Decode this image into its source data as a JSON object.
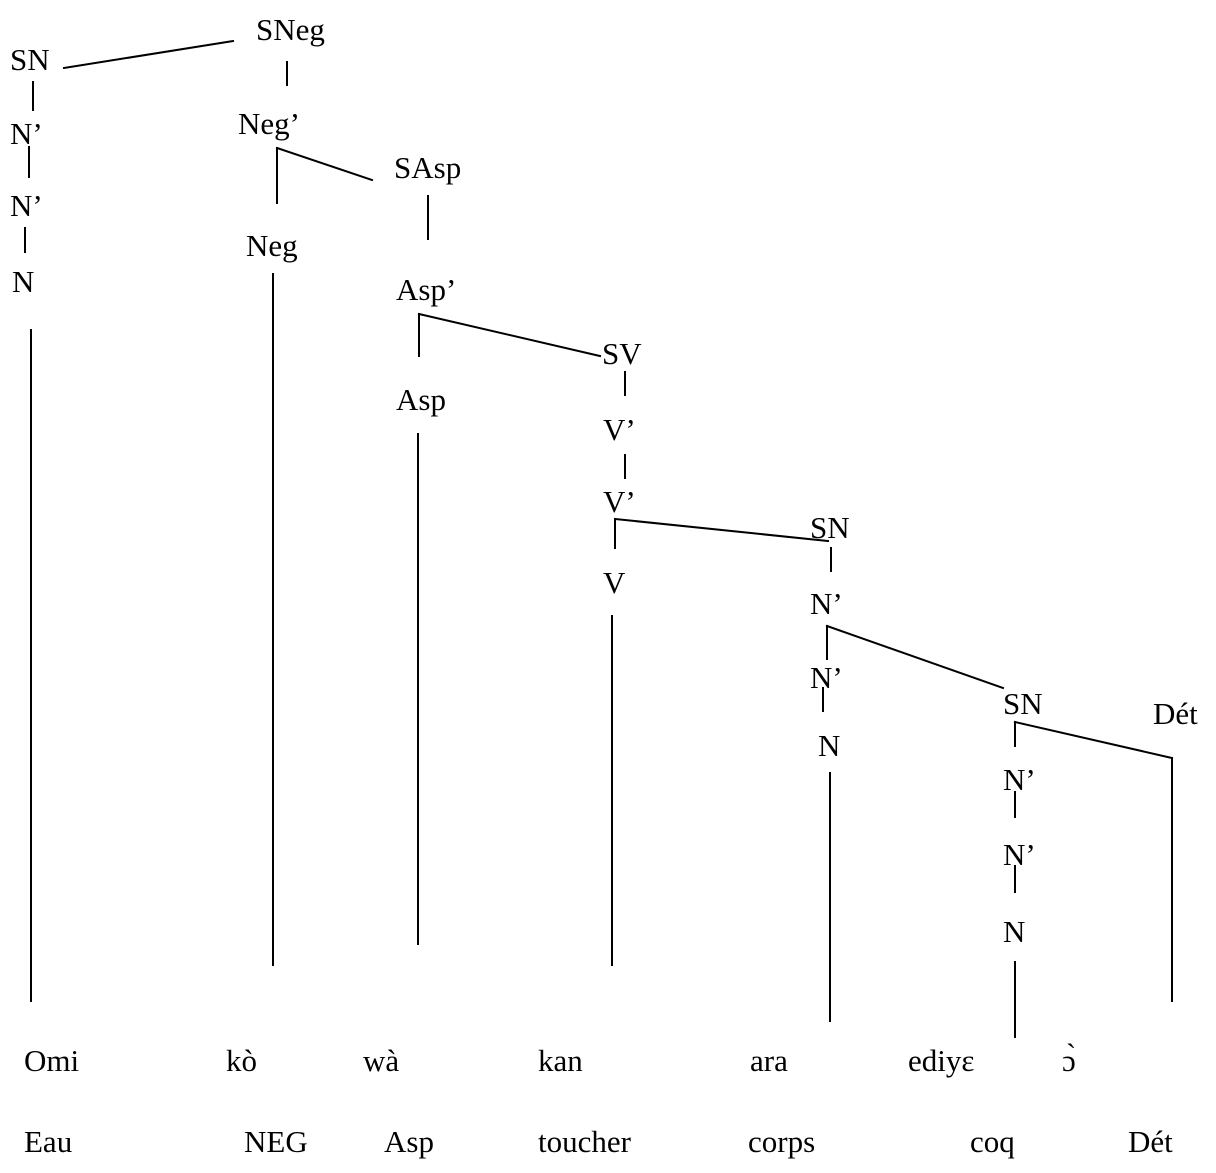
{
  "nodes": {
    "sn_subj": "SN",
    "n_bar_subj_1": "N’",
    "n_bar_subj_2": "N’",
    "n_subj": "N",
    "sneg": "SNeg",
    "neg_bar": "Neg’",
    "neg": "Neg",
    "sasp": "SAsp",
    "asp_bar": "Asp’",
    "asp": "Asp",
    "sv": "SV",
    "v_bar_1": "V’",
    "v_bar_2": "V’",
    "v": "V",
    "sn_obj": "SN",
    "n_bar_obj_1": "N’",
    "n_bar_obj_2": "N’",
    "n_obj": "N",
    "sn_poss": "SN",
    "det": "Dét",
    "n_bar_poss_1": "N’",
    "n_bar_poss_2": "N’",
    "n_poss": "N"
  },
  "words": [
    "Omi",
    "kò",
    "wà",
    "kan",
    "ara",
    "ediyɛ",
    "ɔ̀"
  ],
  "glosses": [
    "Eau",
    "NEG",
    "Asp",
    "toucher",
    "corps",
    "coq",
    "Dét"
  ],
  "colors": {
    "ink": "#000000",
    "background": "#ffffff"
  }
}
